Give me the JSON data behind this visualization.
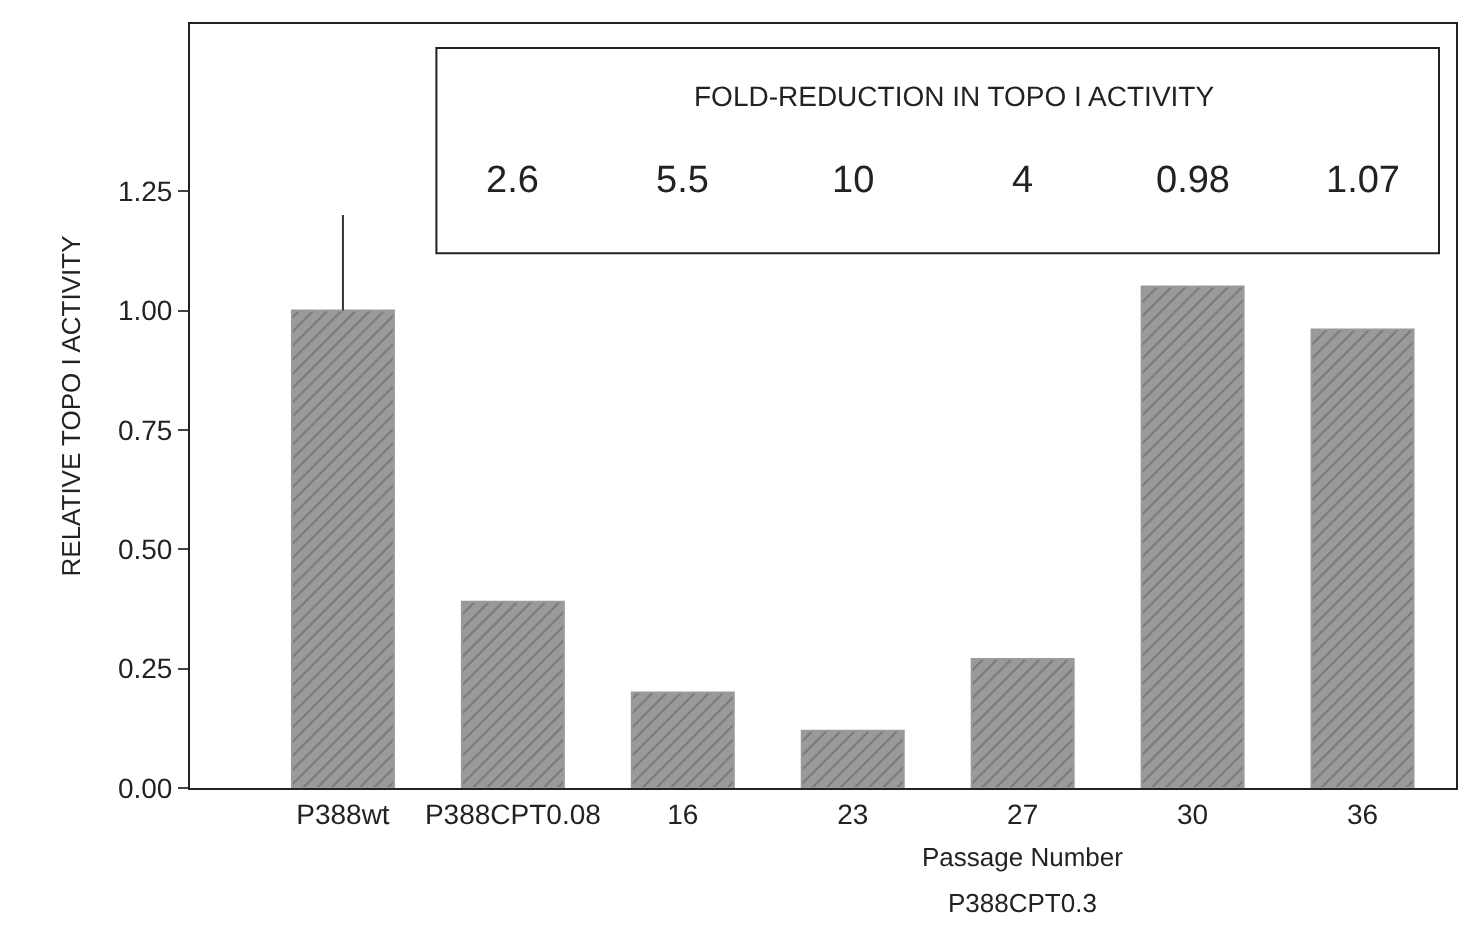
{
  "chart_data": {
    "type": "bar",
    "ylabel": "RELATIVE TOPO I ACTIVITY",
    "categories": [
      "P388wt",
      "P388CPT0.08",
      "16",
      "23",
      "27",
      "30",
      "36"
    ],
    "values": [
      1.0,
      0.39,
      0.2,
      0.12,
      0.27,
      1.05,
      0.96
    ],
    "errors": [
      0.2,
      null,
      null,
      null,
      null,
      null,
      null
    ],
    "color": "#9a9a9a",
    "ylim": [
      0,
      1.6
    ],
    "yticks": [
      {
        "value": 0,
        "label": "0.00"
      },
      {
        "value": 0.25,
        "label": "0.25"
      },
      {
        "value": 0.5,
        "label": "0.50"
      },
      {
        "value": 0.75,
        "label": "0.75"
      },
      {
        "value": 1,
        "label": "1.00"
      },
      {
        "value": 1.25,
        "label": "1.25"
      }
    ],
    "annotations": [
      "FOLD-REDUCTION IN TOPO I ACTIVITY",
      "2.6",
      "5.5",
      "10",
      "4",
      "0.98",
      "1.07",
      "Passage Number",
      "P388CPT0.3"
    ]
  }
}
